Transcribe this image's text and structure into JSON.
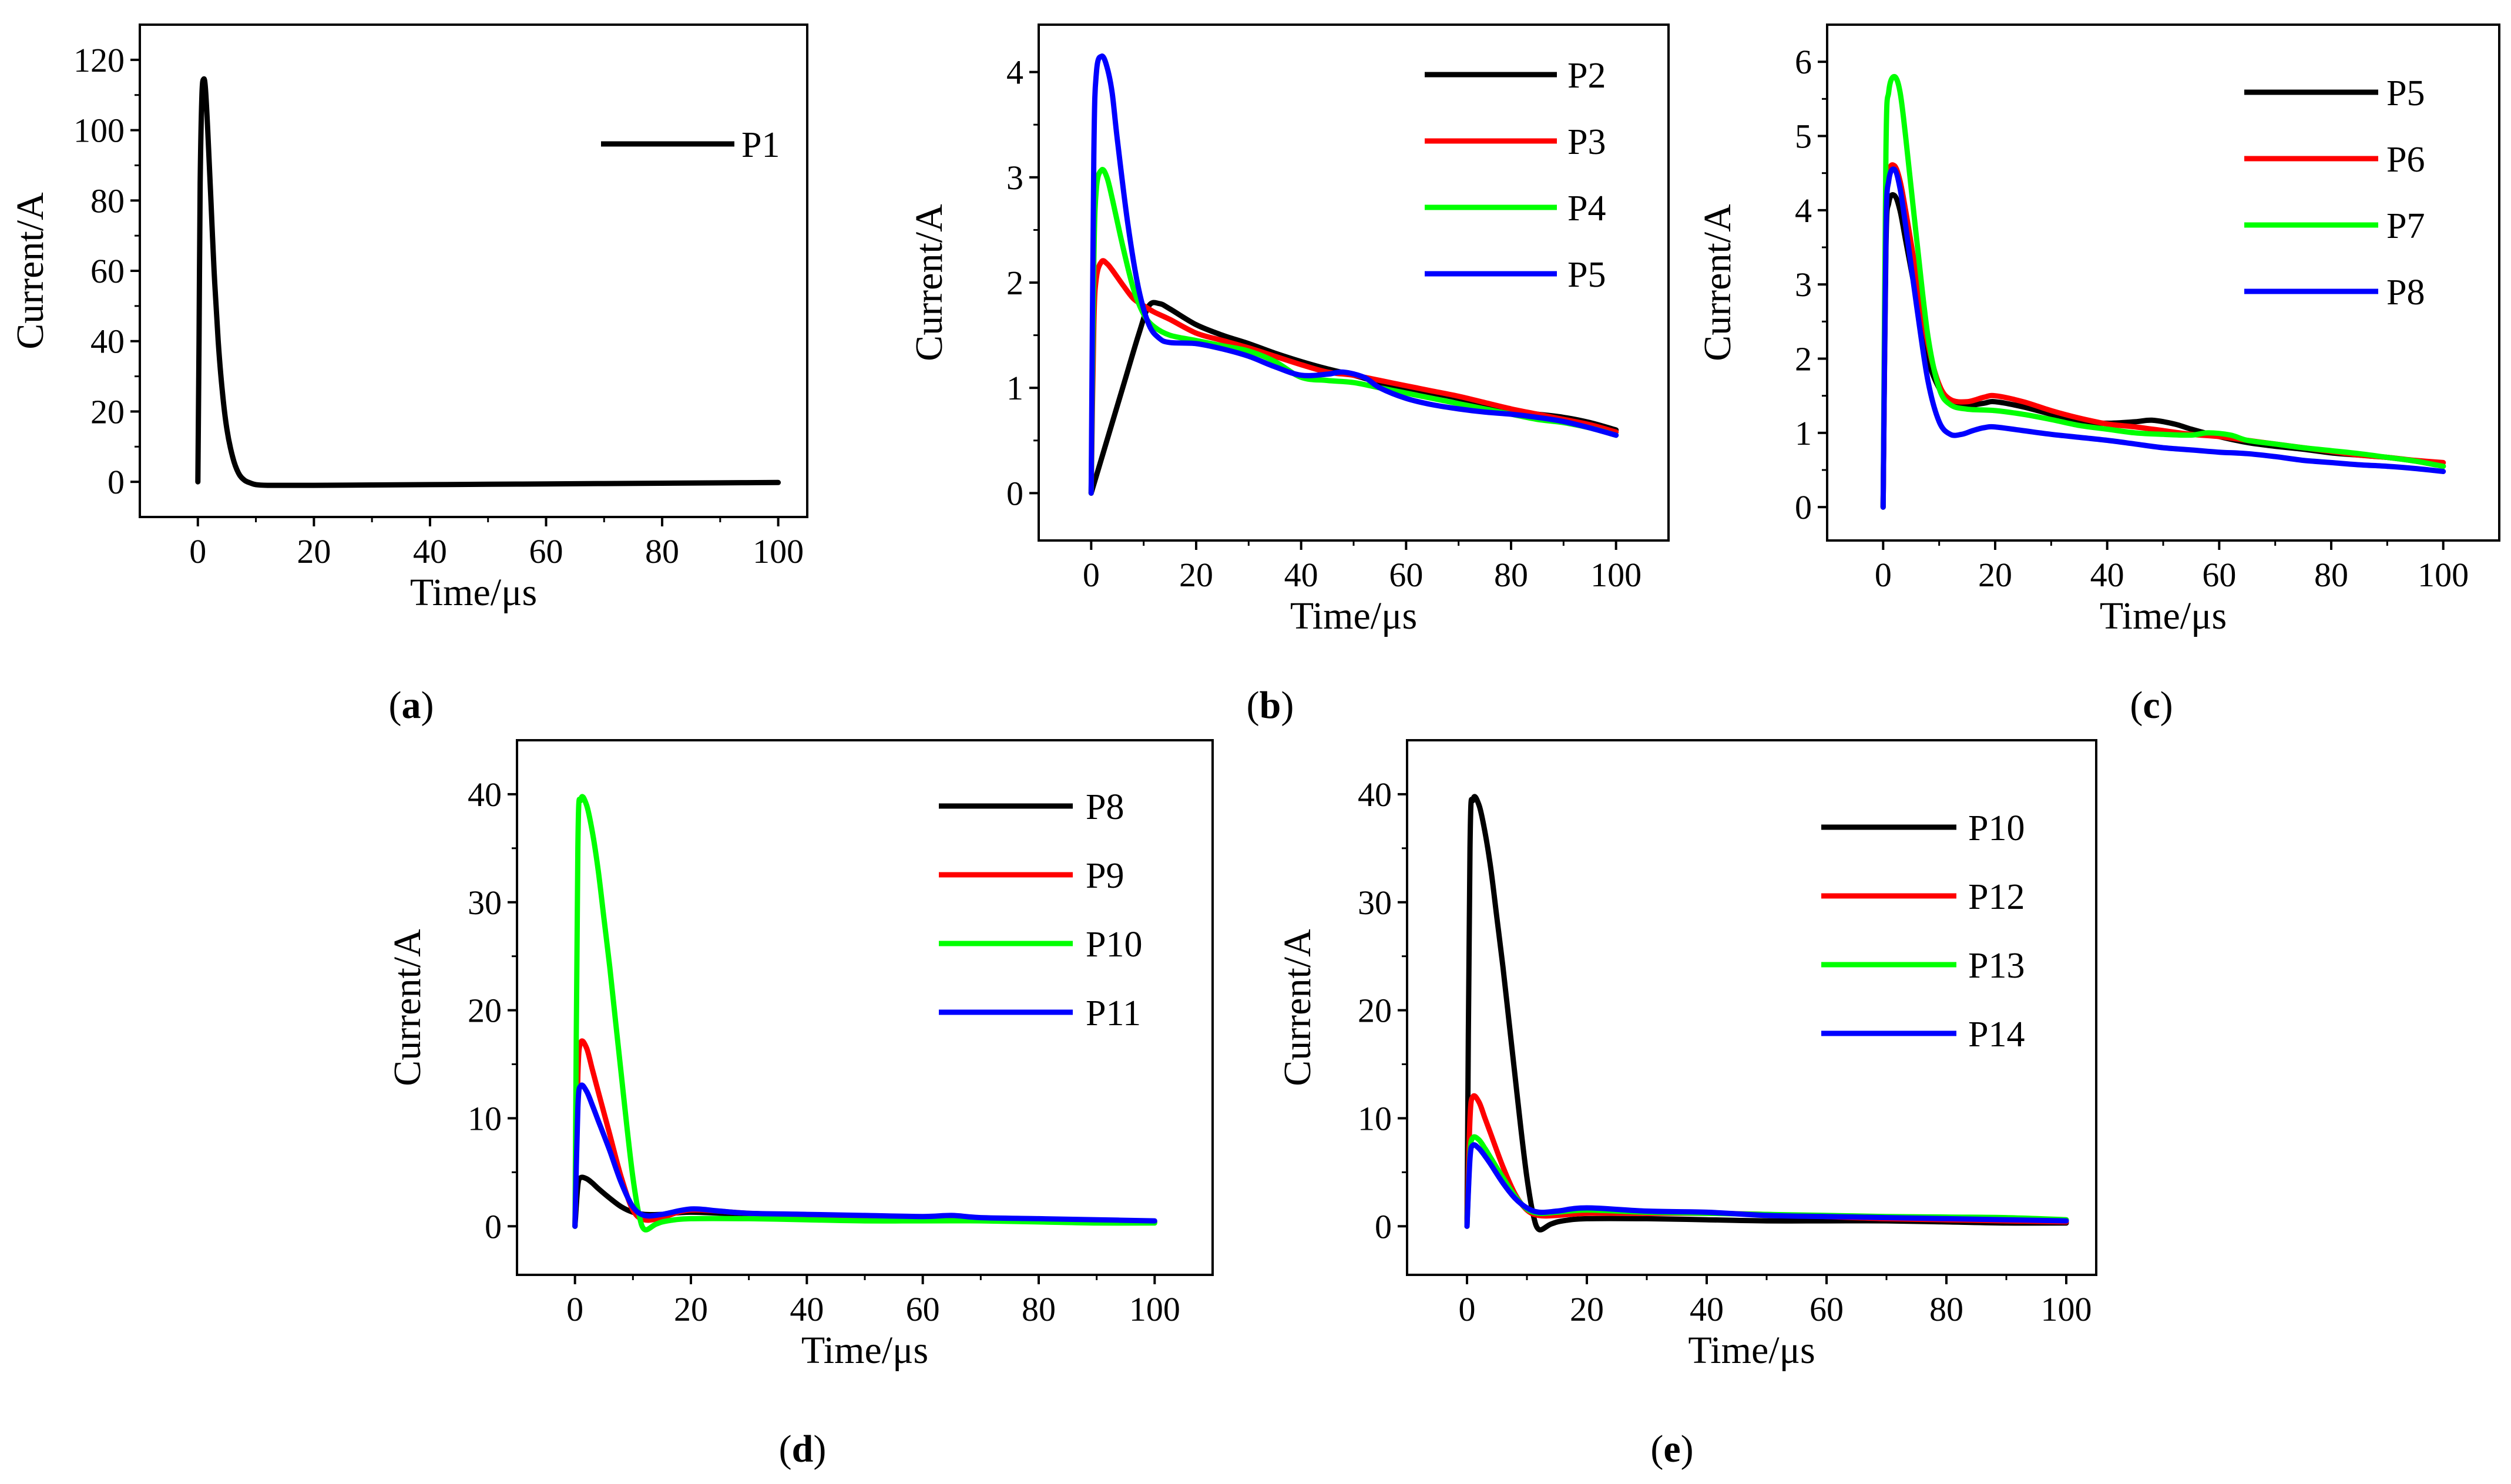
{
  "chart_data": [
    {
      "type": "line",
      "panel_label": "a",
      "xlabel": "Time/μs",
      "ylabel": "Current/A",
      "xlim": [
        -10,
        105
      ],
      "ylim": [
        -10,
        130
      ],
      "xticks": [
        0,
        20,
        40,
        60,
        80,
        100
      ],
      "yticks": [
        0,
        20,
        40,
        60,
        80,
        100,
        120
      ],
      "legend_position": "top-right",
      "series": [
        {
          "name": "P1",
          "color": "#000000",
          "x": [
            0,
            0.2,
            0.4,
            0.7,
            1,
            1.3,
            1.7,
            2.2,
            2.8,
            3.5,
            4.2,
            5,
            6,
            7,
            8,
            9,
            10,
            12,
            15,
            20,
            30,
            40,
            50,
            60,
            70,
            80,
            90,
            100
          ],
          "y": [
            0,
            40,
            85,
            110,
            114.5,
            112,
            100,
            82,
            60,
            40,
            26,
            15,
            7,
            2.5,
            0.5,
            -0.3,
            -0.8,
            -1,
            -1,
            -1,
            -0.9,
            -0.8,
            -0.7,
            -0.6,
            -0.5,
            -0.4,
            -0.3,
            -0.2
          ]
        }
      ]
    },
    {
      "type": "line",
      "panel_label": "b",
      "xlabel": "Time/μs",
      "ylabel": "Current/A",
      "xlim": [
        -10,
        110
      ],
      "ylim": [
        -0.45,
        4.45
      ],
      "xticks": [
        0,
        20,
        40,
        60,
        80,
        100
      ],
      "yticks": [
        0,
        1,
        2,
        3,
        4
      ],
      "legend_position": "top-right",
      "series": [
        {
          "name": "P2",
          "color": "#000000",
          "x": [
            0,
            3,
            6,
            9,
            11,
            13,
            15,
            20,
            25,
            30,
            35,
            40,
            45,
            50,
            55,
            60,
            65,
            70,
            75,
            80,
            85,
            90,
            95,
            100
          ],
          "y": [
            0,
            0.5,
            1.0,
            1.5,
            1.78,
            1.8,
            1.75,
            1.6,
            1.5,
            1.42,
            1.33,
            1.25,
            1.18,
            1.12,
            1.05,
            1.0,
            0.95,
            0.9,
            0.83,
            0.78,
            0.75,
            0.72,
            0.67,
            0.6
          ]
        },
        {
          "name": "P3",
          "color": "#ff0000",
          "x": [
            0,
            0.5,
            1,
            2,
            3,
            4,
            6,
            8,
            10,
            12,
            15,
            20,
            25,
            30,
            35,
            40,
            45,
            50,
            55,
            60,
            65,
            70,
            75,
            80,
            85,
            90,
            95,
            100
          ],
          "y": [
            0,
            1.6,
            2.05,
            2.2,
            2.18,
            2.12,
            1.98,
            1.85,
            1.78,
            1.72,
            1.65,
            1.52,
            1.45,
            1.38,
            1.3,
            1.22,
            1.15,
            1.12,
            1.07,
            1.02,
            0.97,
            0.92,
            0.86,
            0.8,
            0.75,
            0.7,
            0.65,
            0.58
          ]
        },
        {
          "name": "P4",
          "color": "#00ff00",
          "x": [
            0,
            0.5,
            1,
            2,
            3,
            4,
            6,
            8,
            10,
            12,
            15,
            20,
            25,
            30,
            35,
            40,
            45,
            50,
            55,
            60,
            65,
            70,
            75,
            80,
            85,
            90,
            95,
            100
          ],
          "y": [
            0,
            2.2,
            2.9,
            3.07,
            3.0,
            2.8,
            2.35,
            1.95,
            1.7,
            1.58,
            1.5,
            1.45,
            1.4,
            1.35,
            1.25,
            1.1,
            1.07,
            1.05,
            1.0,
            0.95,
            0.9,
            0.85,
            0.8,
            0.75,
            0.7,
            0.67,
            0.62,
            0.55
          ]
        },
        {
          "name": "P5",
          "color": "#0000ff",
          "x": [
            0,
            0.5,
            1,
            2,
            3,
            4,
            5,
            7,
            9,
            11,
            13,
            15,
            20,
            25,
            30,
            35,
            40,
            45,
            48,
            52,
            55,
            60,
            65,
            70,
            75,
            80,
            85,
            90,
            95,
            100
          ],
          "y": [
            0,
            3.2,
            4.0,
            4.15,
            4.05,
            3.8,
            3.35,
            2.55,
            1.95,
            1.6,
            1.47,
            1.43,
            1.42,
            1.37,
            1.3,
            1.2,
            1.12,
            1.13,
            1.15,
            1.1,
            1.0,
            0.9,
            0.84,
            0.8,
            0.77,
            0.75,
            0.72,
            0.68,
            0.62,
            0.55
          ]
        }
      ]
    },
    {
      "type": "line",
      "panel_label": "c",
      "xlabel": "Time/μs",
      "ylabel": "Current/A",
      "xlim": [
        -10,
        110
      ],
      "ylim": [
        -0.45,
        6.5
      ],
      "xticks": [
        0,
        20,
        40,
        60,
        80,
        100
      ],
      "yticks": [
        0,
        1,
        2,
        3,
        4,
        5,
        6
      ],
      "legend_position": "top-right",
      "series": [
        {
          "name": "P5",
          "color": "#000000",
          "x": [
            0,
            0.5,
            1,
            2,
            3,
            4,
            6,
            8,
            10,
            12,
            15,
            18,
            20,
            25,
            30,
            35,
            40,
            45,
            48,
            52,
            55,
            60,
            65,
            70,
            75,
            80,
            85,
            90,
            95,
            100
          ],
          "y": [
            0,
            3.5,
            4.1,
            4.2,
            4.0,
            3.6,
            2.8,
            2.0,
            1.6,
            1.42,
            1.37,
            1.4,
            1.42,
            1.35,
            1.25,
            1.15,
            1.13,
            1.15,
            1.17,
            1.12,
            1.05,
            0.95,
            0.87,
            0.82,
            0.78,
            0.73,
            0.7,
            0.67,
            0.62,
            0.55
          ]
        },
        {
          "name": "P6",
          "color": "#ff0000",
          "x": [
            0,
            0.5,
            1,
            2,
            3,
            4,
            6,
            8,
            10,
            12,
            15,
            18,
            20,
            25,
            30,
            35,
            40,
            45,
            50,
            55,
            60,
            65,
            70,
            75,
            80,
            85,
            90,
            95,
            100
          ],
          "y": [
            0,
            3.8,
            4.5,
            4.6,
            4.4,
            4.0,
            3.1,
            2.2,
            1.65,
            1.45,
            1.42,
            1.48,
            1.5,
            1.42,
            1.3,
            1.2,
            1.12,
            1.08,
            1.03,
            0.98,
            0.95,
            0.9,
            0.85,
            0.8,
            0.75,
            0.7,
            0.67,
            0.63,
            0.6
          ]
        },
        {
          "name": "P7",
          "color": "#00ff00",
          "x": [
            0,
            0.5,
            1,
            2,
            3,
            4,
            6,
            8,
            10,
            12,
            15,
            20,
            25,
            30,
            35,
            40,
            45,
            50,
            55,
            58,
            62,
            65,
            70,
            75,
            80,
            85,
            90,
            95,
            100
          ],
          "y": [
            0,
            4.8,
            5.6,
            5.8,
            5.6,
            5.0,
            3.6,
            2.3,
            1.6,
            1.38,
            1.32,
            1.3,
            1.25,
            1.18,
            1.1,
            1.05,
            1.0,
            0.98,
            0.97,
            1.0,
            0.97,
            0.9,
            0.85,
            0.8,
            0.76,
            0.72,
            0.67,
            0.62,
            0.55
          ]
        },
        {
          "name": "P8",
          "color": "#0000ff",
          "x": [
            0,
            0.5,
            1,
            2,
            3,
            4,
            6,
            8,
            10,
            12,
            14,
            16,
            18,
            20,
            25,
            30,
            35,
            40,
            45,
            50,
            55,
            60,
            65,
            70,
            75,
            80,
            85,
            90,
            95,
            100
          ],
          "y": [
            0,
            3.7,
            4.4,
            4.55,
            4.3,
            3.8,
            2.7,
            1.7,
            1.15,
            0.98,
            0.98,
            1.03,
            1.07,
            1.08,
            1.03,
            0.98,
            0.94,
            0.9,
            0.85,
            0.8,
            0.77,
            0.74,
            0.72,
            0.68,
            0.63,
            0.6,
            0.57,
            0.55,
            0.52,
            0.48
          ]
        }
      ]
    },
    {
      "type": "line",
      "panel_label": "d",
      "xlabel": "Time/μs",
      "ylabel": "Current/A",
      "xlim": [
        -10,
        110
      ],
      "ylim": [
        -4.5,
        45
      ],
      "xticks": [
        0,
        20,
        40,
        60,
        80,
        100
      ],
      "yticks": [
        0,
        10,
        20,
        30,
        40
      ],
      "legend_position": "top-right",
      "series": [
        {
          "name": "P8",
          "color": "#000000",
          "x": [
            0,
            0.5,
            1,
            2,
            3,
            4,
            6,
            8,
            10,
            12,
            15,
            20,
            30,
            40,
            50,
            60,
            70,
            80,
            90,
            100
          ],
          "y": [
            0,
            3.8,
            4.5,
            4.4,
            4.0,
            3.5,
            2.6,
            1.8,
            1.3,
            1.1,
            1.1,
            1.3,
            1.1,
            1.0,
            0.9,
            0.8,
            0.75,
            0.6,
            0.5,
            0.4
          ]
        },
        {
          "name": "P9",
          "color": "#ff0000",
          "x": [
            0,
            0.5,
            1,
            2,
            3,
            4,
            6,
            8,
            10,
            12,
            15,
            20,
            30,
            40,
            50,
            60,
            70,
            80,
            90,
            100
          ],
          "y": [
            0,
            14,
            17,
            16.5,
            14.5,
            12.5,
            8.5,
            4.5,
            1.5,
            0.6,
            0.8,
            1.5,
            1.2,
            1.0,
            0.9,
            0.8,
            0.75,
            0.6,
            0.5,
            0.4
          ]
        },
        {
          "name": "P10",
          "color": "#00ff00",
          "x": [
            0,
            0.5,
            1,
            2,
            3,
            4,
            5,
            6,
            7,
            8,
            9,
            10,
            11,
            12,
            14,
            16,
            20,
            30,
            40,
            50,
            60,
            70,
            80,
            90,
            100
          ],
          "y": [
            0,
            35,
            39.5,
            39,
            36.5,
            33,
            28.5,
            24,
            19,
            14,
            9,
            4.5,
            1.2,
            -0.3,
            0.2,
            0.5,
            0.7,
            0.7,
            0.6,
            0.5,
            0.5,
            0.5,
            0.4,
            0.3,
            0.3
          ]
        },
        {
          "name": "P11",
          "color": "#0000ff",
          "x": [
            0,
            0.5,
            1,
            2,
            3,
            4,
            6,
            8,
            10,
            12,
            15,
            20,
            25,
            30,
            40,
            50,
            60,
            65,
            70,
            80,
            90,
            100
          ],
          "y": [
            0,
            11,
            13,
            12.5,
            11.2,
            9.8,
            7,
            4,
            1.8,
            1.0,
            1.1,
            1.6,
            1.4,
            1.2,
            1.1,
            1.0,
            0.9,
            1.0,
            0.8,
            0.7,
            0.6,
            0.5
          ]
        }
      ]
    },
    {
      "type": "line",
      "panel_label": "e",
      "xlabel": "Time/μs",
      "ylabel": "Current/A",
      "xlim": [
        -10,
        105
      ],
      "ylim": [
        -4.5,
        45
      ],
      "xticks": [
        0,
        20,
        40,
        60,
        80,
        100
      ],
      "yticks": [
        0,
        10,
        20,
        30,
        40
      ],
      "legend_position": "top-right",
      "series": [
        {
          "name": "P10",
          "color": "#000000",
          "x": [
            0,
            0.5,
            1,
            2,
            3,
            4,
            5,
            6,
            7,
            8,
            9,
            10,
            11,
            12,
            14,
            16,
            20,
            30,
            40,
            50,
            60,
            70,
            80,
            90,
            100
          ],
          "y": [
            0,
            35,
            39.5,
            39,
            36.5,
            33,
            28.5,
            24,
            19,
            14,
            9,
            4.5,
            1.2,
            -0.3,
            0.2,
            0.5,
            0.7,
            0.7,
            0.6,
            0.5,
            0.5,
            0.5,
            0.4,
            0.3,
            0.3
          ]
        },
        {
          "name": "P12",
          "color": "#ff0000",
          "x": [
            0,
            0.5,
            1,
            2,
            3,
            4,
            6,
            8,
            10,
            12,
            15,
            20,
            30,
            40,
            50,
            60,
            70,
            80,
            90,
            100
          ],
          "y": [
            0,
            10,
            12,
            11.5,
            10,
            8.5,
            5.5,
            3,
            1.5,
            1.0,
            1.0,
            1.2,
            1.2,
            1.2,
            1.1,
            0.9,
            0.7,
            0.6,
            0.5,
            0.4
          ]
        },
        {
          "name": "P13",
          "color": "#00ff00",
          "x": [
            0,
            0.5,
            1,
            2,
            3,
            4,
            6,
            8,
            10,
            12,
            15,
            20,
            30,
            40,
            50,
            60,
            70,
            80,
            90,
            100
          ],
          "y": [
            0,
            6.8,
            8.2,
            8,
            7.2,
            6.3,
            4.5,
            2.8,
            1.6,
            1.2,
            1.3,
            1.5,
            1.3,
            1.2,
            1.1,
            1.0,
            0.9,
            0.85,
            0.8,
            0.6
          ]
        },
        {
          "name": "P14",
          "color": "#0000ff",
          "x": [
            0,
            0.5,
            1,
            2,
            3,
            4,
            6,
            8,
            10,
            12,
            15,
            20,
            30,
            40,
            50,
            60,
            70,
            80,
            90,
            100
          ],
          "y": [
            0,
            6.3,
            7.5,
            7.2,
            6.5,
            5.7,
            4.0,
            2.6,
            1.7,
            1.3,
            1.4,
            1.7,
            1.4,
            1.3,
            1.0,
            0.9,
            0.8,
            0.7,
            0.6,
            0.5
          ]
        }
      ]
    }
  ]
}
